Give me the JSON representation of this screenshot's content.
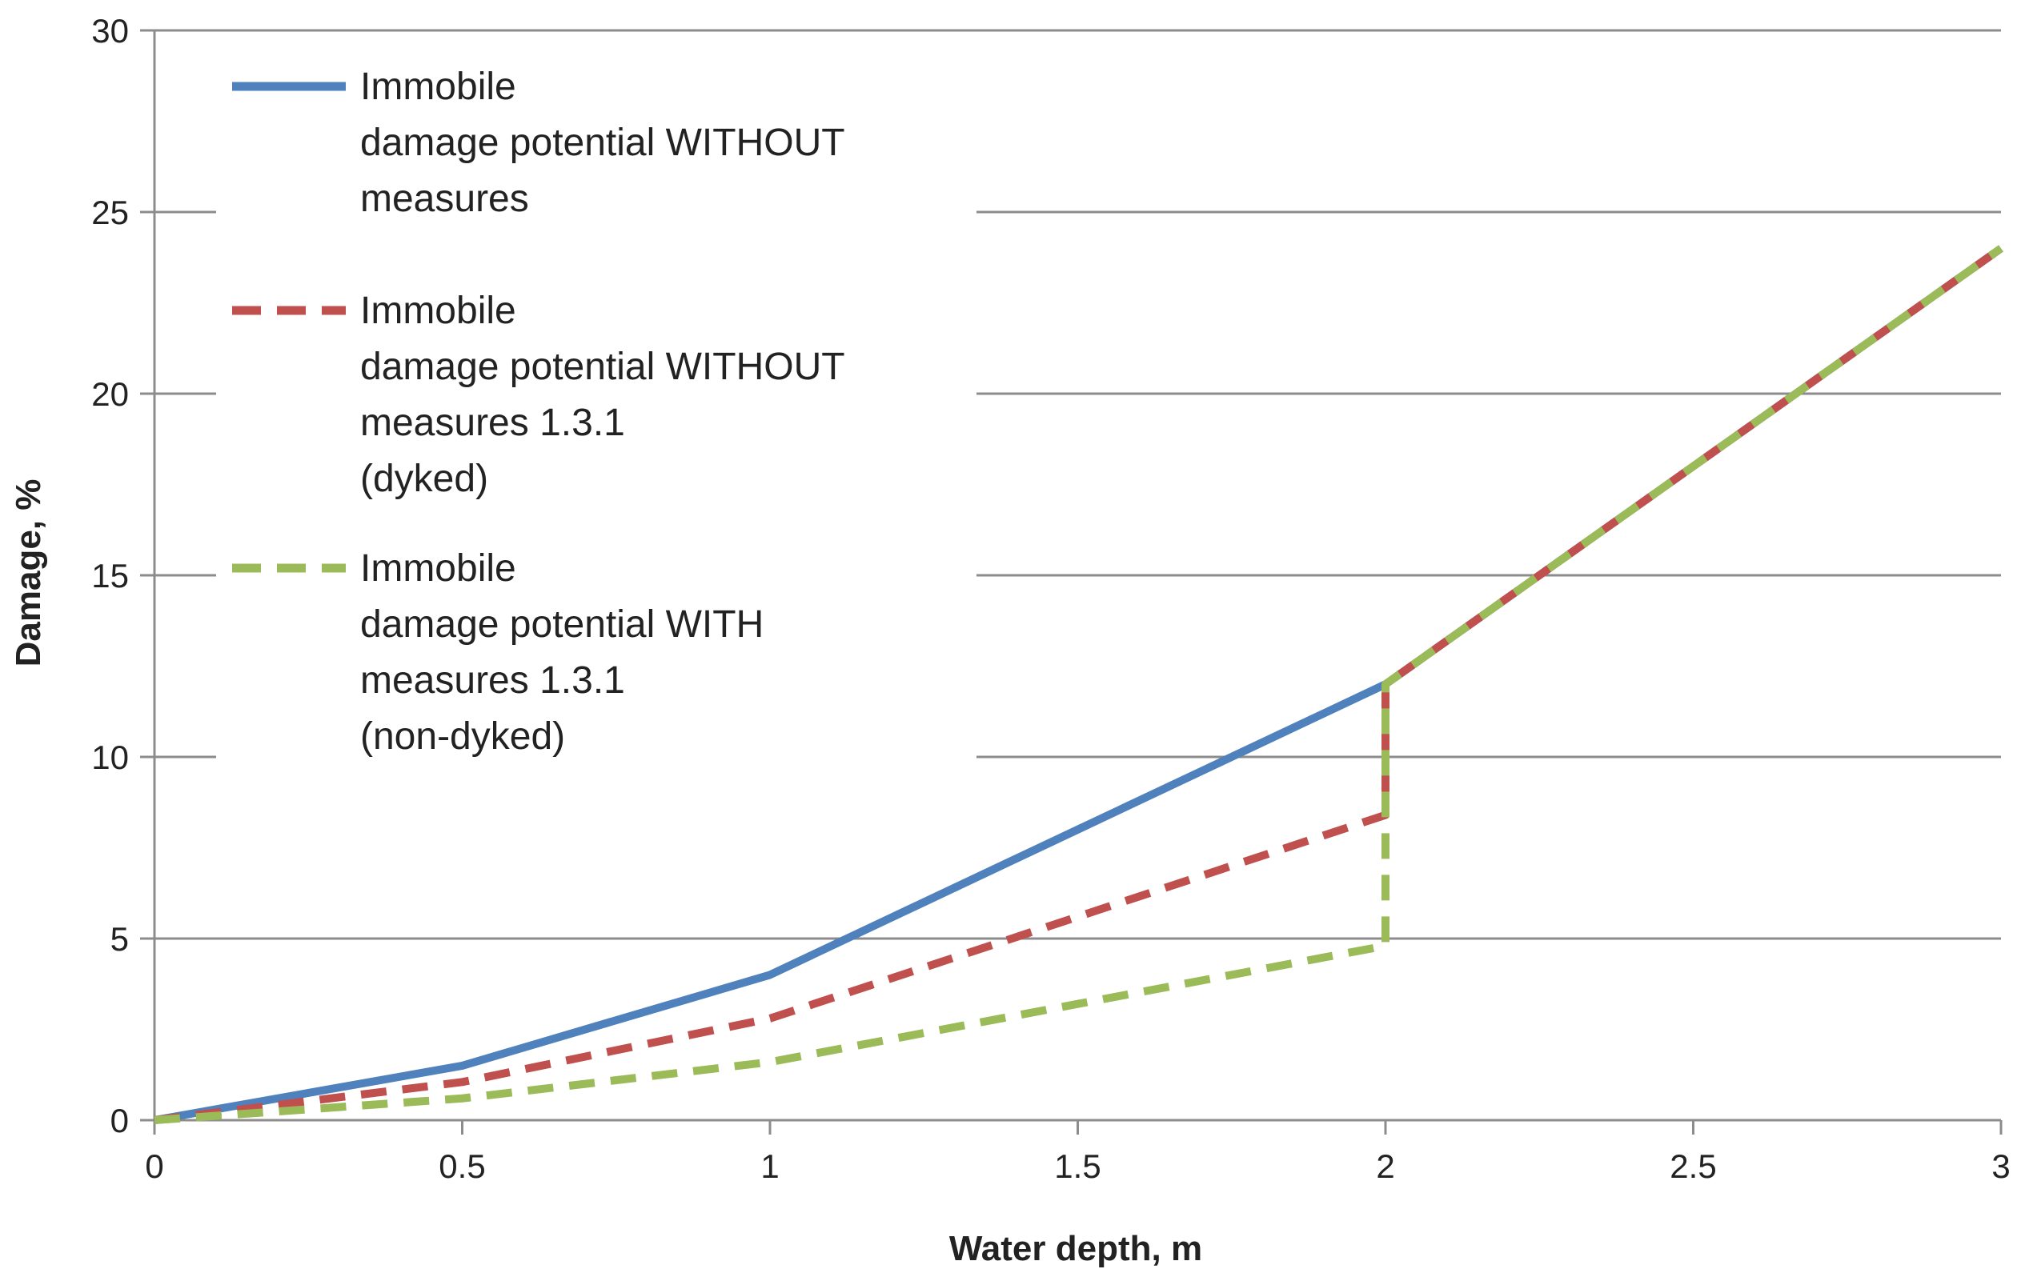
{
  "chart_data": {
    "type": "line",
    "title": "",
    "xlabel": "Water depth, m",
    "ylabel": "Damage, %",
    "xlim": [
      0,
      3
    ],
    "ylim": [
      0,
      30
    ],
    "x_ticks": [
      "0",
      "0.5",
      "1",
      "1.5",
      "2",
      "2.5",
      "3"
    ],
    "y_ticks": [
      "0",
      "5",
      "10",
      "15",
      "20",
      "25",
      "30"
    ],
    "grid": "horizontal",
    "legend_position": "top-left",
    "series": [
      {
        "name": "Immobile damage potential WITHOUT measures",
        "legend_lines": [
          "Immobile",
          "damage potential WITHOUT",
          "measures"
        ],
        "color": "#4f81bd",
        "style": "solid",
        "points": [
          [
            0,
            0
          ],
          [
            0.5,
            1.5
          ],
          [
            1,
            4
          ],
          [
            1.5,
            8
          ],
          [
            2,
            12
          ],
          [
            2.5,
            18
          ],
          [
            3,
            24
          ]
        ]
      },
      {
        "name": "Immobile damage potential WITHOUT measures 1.3.1 (dyked)",
        "legend_lines": [
          "Immobile",
          "damage potential WITHOUT",
          "measures 1.3.1",
          "(dyked)"
        ],
        "color": "#c0504d",
        "style": "dashed",
        "points": [
          [
            0,
            0
          ],
          [
            0.5,
            1.05
          ],
          [
            1,
            2.8
          ],
          [
            1.5,
            5.6
          ],
          [
            2,
            8.4
          ],
          [
            2,
            12
          ],
          [
            2.5,
            18
          ],
          [
            3,
            24
          ]
        ]
      },
      {
        "name": "Immobile damage potential WITH measures 1.3.1 (non-dyked)",
        "legend_lines": [
          "Immobile",
          "damage potential WITH",
          "measures 1.3.1",
          "(non-dyked)"
        ],
        "color": "#9bbb59",
        "style": "dashed",
        "points": [
          [
            0,
            0
          ],
          [
            0.5,
            0.6
          ],
          [
            1,
            1.6
          ],
          [
            1.5,
            3.2
          ],
          [
            2,
            4.8
          ],
          [
            2,
            12
          ],
          [
            2.5,
            18
          ],
          [
            3,
            24
          ]
        ]
      }
    ]
  }
}
